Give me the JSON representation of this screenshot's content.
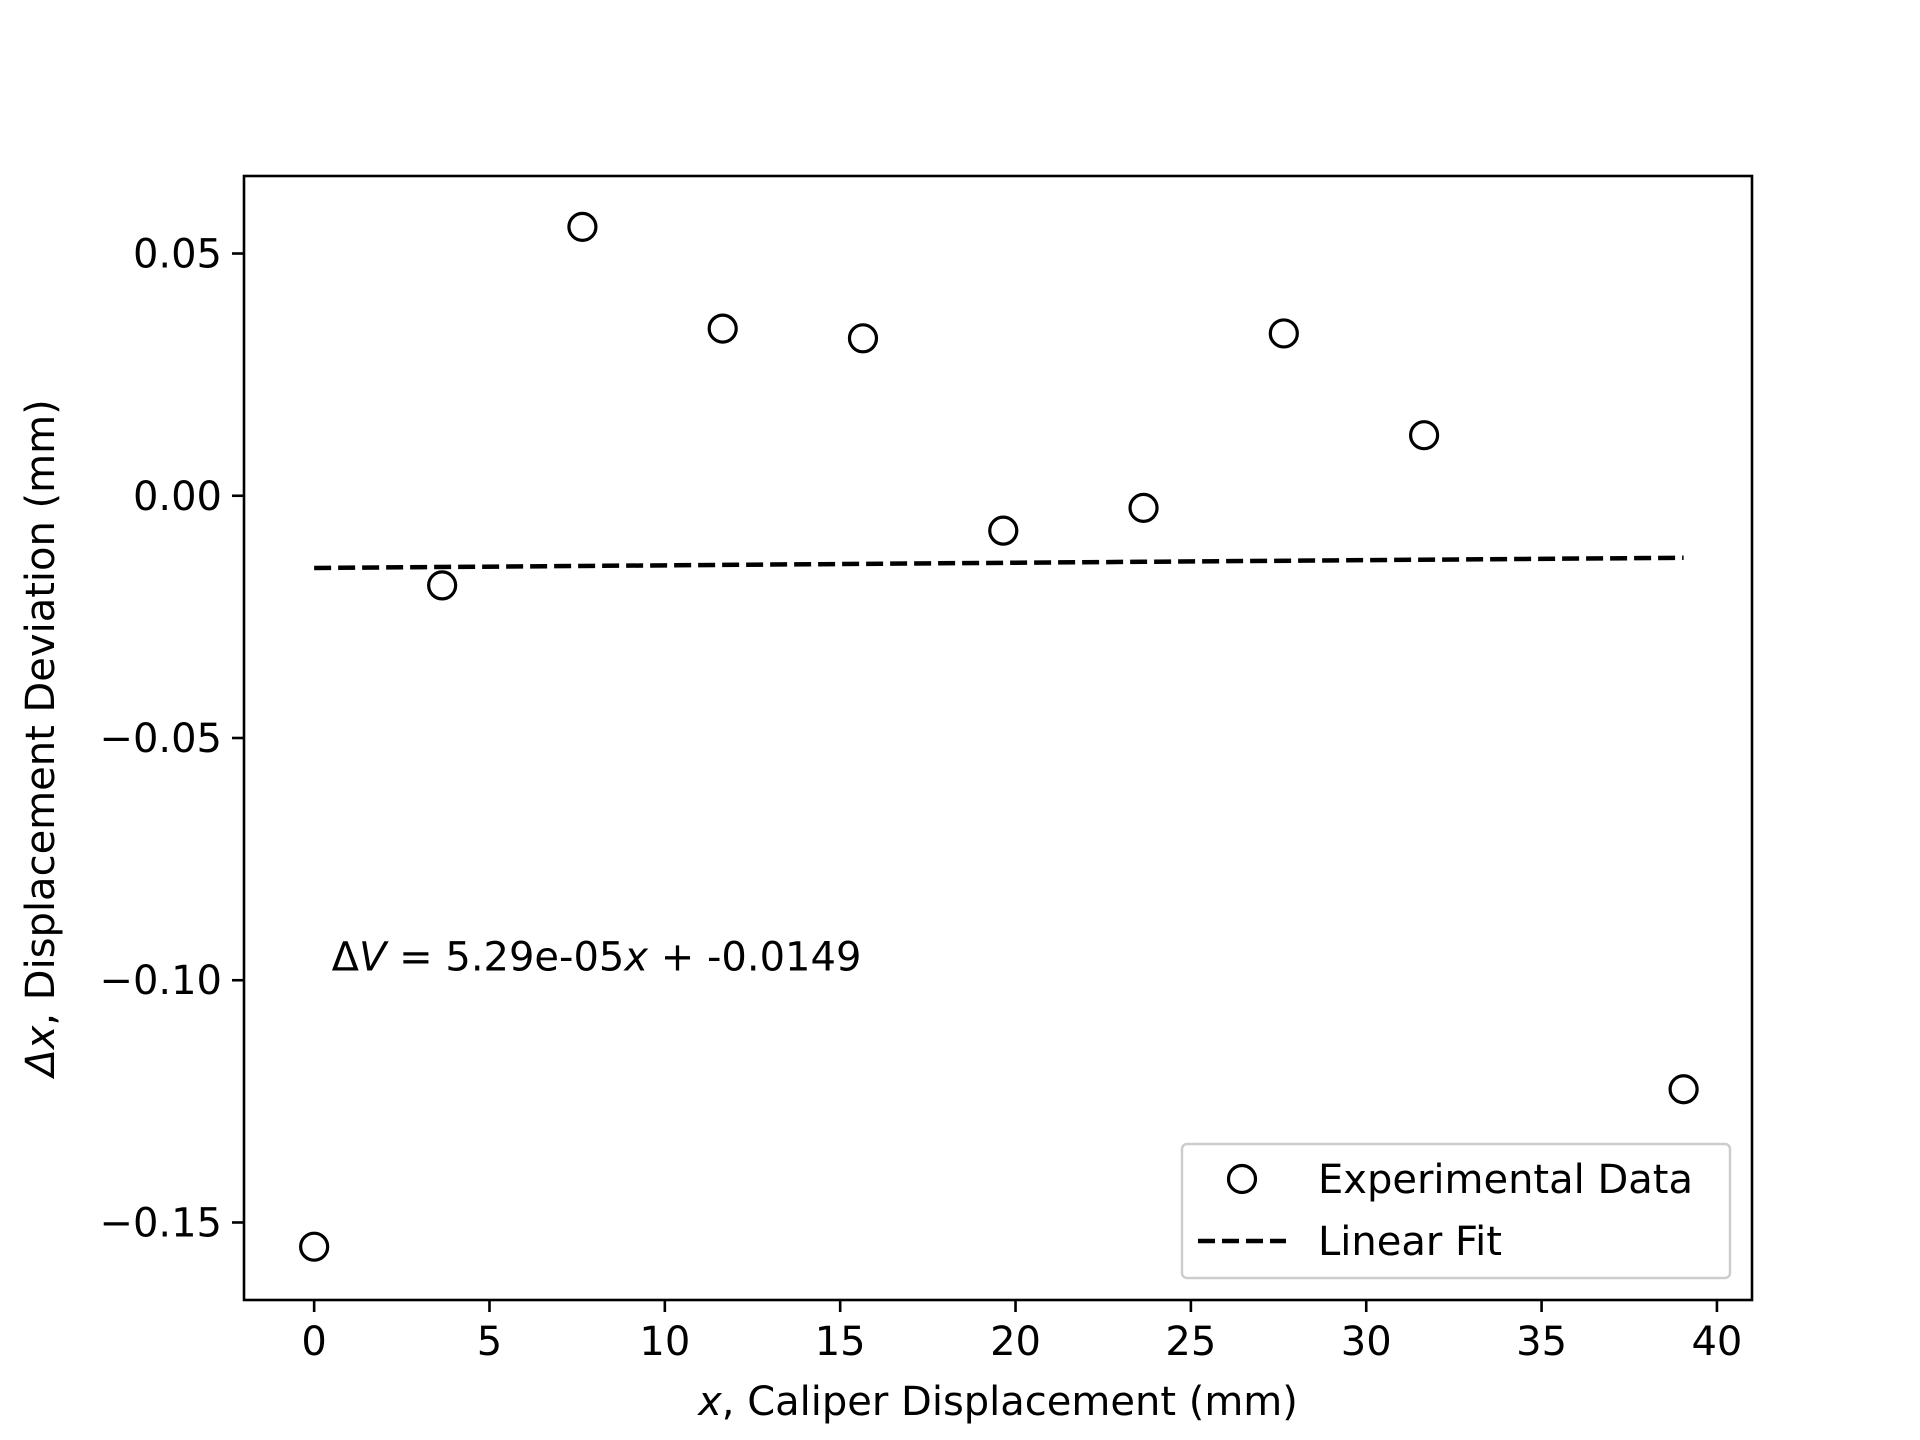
{
  "chart_data": {
    "type": "scatter",
    "title": "",
    "xlabel_var": "x",
    "xlabel_rest": ", Caliper Displacement (mm)",
    "ylabel_var": "Δx",
    "ylabel_rest": ", Displacement Deviation (mm)",
    "xlim": [
      -2,
      41
    ],
    "ylim": [
      -0.166,
      0.066
    ],
    "xticks": [
      0,
      5,
      10,
      15,
      20,
      25,
      30,
      35,
      40
    ],
    "xtick_labels": [
      "0",
      "5",
      "10",
      "15",
      "20",
      "25",
      "30",
      "35",
      "40"
    ],
    "yticks": [
      0.05,
      0.0,
      -0.05,
      -0.1,
      -0.15
    ],
    "ytick_labels": [
      "0.05",
      "0.00",
      "−0.05",
      "−0.10",
      "−0.15"
    ],
    "grid": false,
    "legend_position": "lower-right",
    "series": [
      {
        "name": "Experimental Data",
        "kind": "scatter",
        "marker": "open-circle",
        "color": "#000000",
        "x": [
          0.0,
          3.65,
          7.65,
          11.65,
          15.65,
          19.65,
          23.65,
          27.65,
          31.65,
          39.05
        ],
        "y": [
          -0.155,
          -0.0185,
          0.0555,
          0.0345,
          0.0325,
          -0.0072,
          -0.0025,
          0.0335,
          0.0125,
          -0.1225
        ]
      },
      {
        "name": "Linear Fit",
        "kind": "line",
        "style": "dashed",
        "color": "#000000",
        "slope": 5.29e-05,
        "intercept": -0.0149,
        "x": [
          0.0,
          39.05
        ],
        "y": [
          -0.0149,
          -0.0128
        ]
      }
    ],
    "annotation": {
      "lhs_delta": "Δ",
      "lhs_var": "V",
      "middle": " = 5.29e-05",
      "var": "x",
      "rest": " + -0.0149",
      "at": [
        0.5,
        -0.098
      ]
    }
  }
}
